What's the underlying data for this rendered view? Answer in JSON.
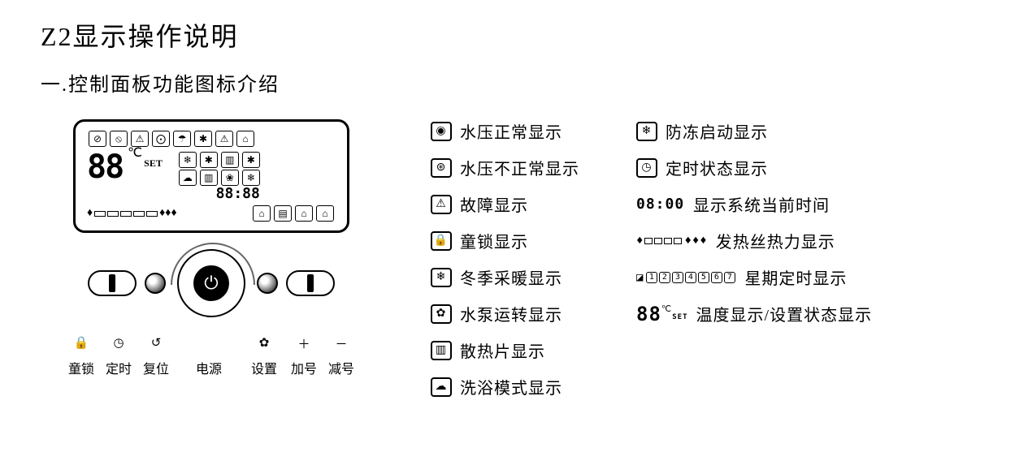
{
  "title": "Z2显示操作说明",
  "subtitle": "一.控制面板功能图标介绍",
  "lcd": {
    "temp_digits": "88",
    "temp_unit": "℃",
    "set_label": "SET",
    "clock_digits": "88:88",
    "top_icons": [
      "⊘",
      "⦸",
      "⚠",
      "⨀",
      "☂",
      "✱",
      "⚠",
      "⌂"
    ],
    "side_icons_r1": [
      "❄",
      "✱",
      "▥",
      "✱"
    ],
    "side_icons_r2": [
      "☁",
      "▥",
      "❀",
      "❄"
    ],
    "side_icons_r3": [
      "⌂",
      "▤",
      "⌂",
      "⌂"
    ],
    "bar_flames": "♦",
    "bar_flames_right": "♦♦♦"
  },
  "buttons": [
    {
      "icon": "🔒",
      "label": "童锁"
    },
    {
      "icon": "◷",
      "label": "定时"
    },
    {
      "icon": "↺",
      "label": "复位"
    },
    {
      "icon": "",
      "label": "电源"
    },
    {
      "icon": "✿",
      "label": "设置"
    },
    {
      "icon": "＋",
      "label": "加号"
    },
    {
      "icon": "－",
      "label": "减号"
    }
  ],
  "legend_left": [
    {
      "icon": "◉",
      "label": "水压正常显示"
    },
    {
      "icon": "⊛",
      "label": "水压不正常显示"
    },
    {
      "icon": "⚠",
      "label": "故障显示"
    },
    {
      "icon": "🔒",
      "label": "童锁显示"
    },
    {
      "icon": "❄",
      "label": "冬季采暖显示"
    },
    {
      "icon": "✿",
      "label": "水泵运转显示"
    },
    {
      "icon": "▥",
      "label": "散热片显示"
    },
    {
      "icon": "☁",
      "label": "洗浴模式显示"
    }
  ],
  "legend_right": [
    {
      "type": "box",
      "icon": "❄",
      "label": "防冻启动显示"
    },
    {
      "type": "box",
      "icon": "◷",
      "label": "定时状态显示"
    },
    {
      "type": "clock",
      "clock": "08:00",
      "label": "显示系统当前时间"
    },
    {
      "type": "heat",
      "label": "发热丝热力显示"
    },
    {
      "type": "week",
      "nums": [
        "1",
        "2",
        "3",
        "4",
        "5",
        "6",
        "7"
      ],
      "label": "星期定时显示"
    },
    {
      "type": "temp",
      "digits": "88",
      "unit": "℃",
      "set": "SET",
      "label": "温度显示/设置状态显示"
    }
  ],
  "colors": {
    "fg": "#000000",
    "bg": "#ffffff"
  }
}
